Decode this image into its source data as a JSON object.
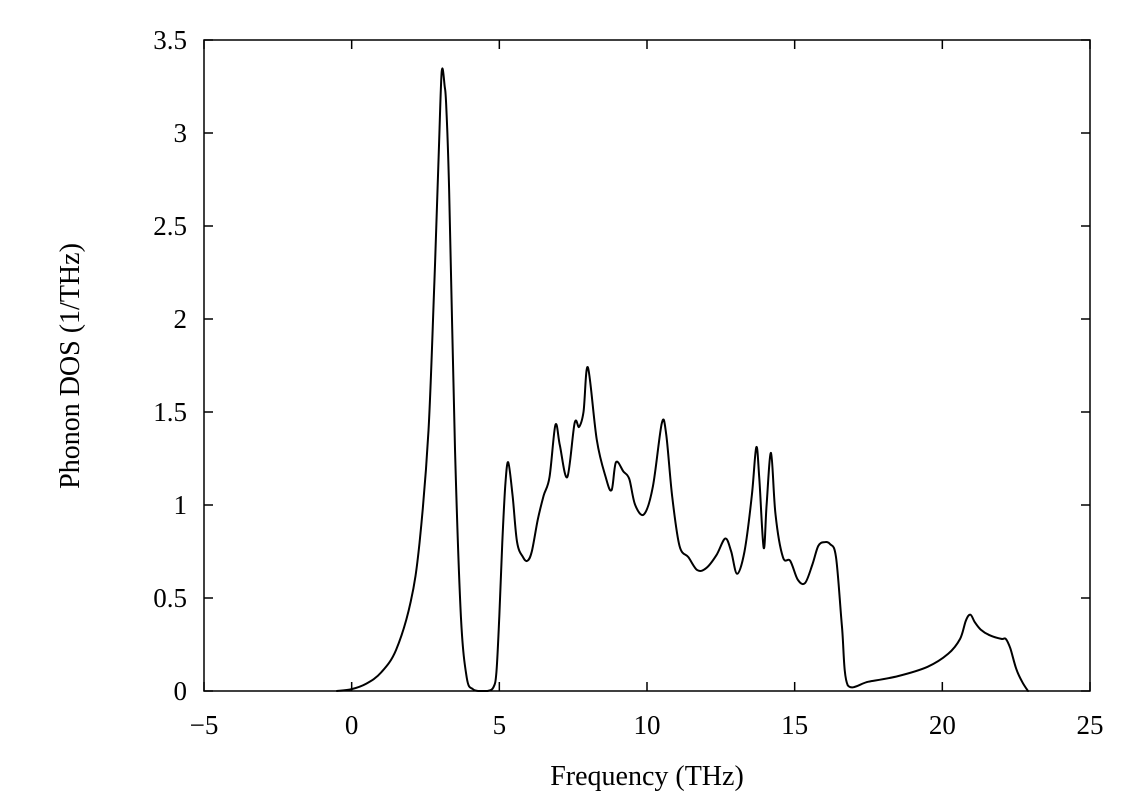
{
  "chart_data": {
    "type": "line",
    "title": "",
    "xlabel": "Frequency (THz)",
    "ylabel": "Phonon DOS (1/THz)",
    "xlim": [
      -5,
      25
    ],
    "ylim": [
      0,
      3.5
    ],
    "xticks": [
      -5,
      0,
      5,
      10,
      15,
      20,
      25
    ],
    "xtick_labels": [
      "−5",
      "0",
      "5",
      "10",
      "15",
      "20",
      "25"
    ],
    "yticks": [
      0,
      0.5,
      1,
      1.5,
      2,
      2.5,
      3,
      3.5
    ],
    "ytick_labels": [
      "0",
      "0.5",
      "1",
      "1.5",
      "2",
      "2.5",
      "3",
      "3.5"
    ],
    "grid": false,
    "legend": "none",
    "line_color": "#000000",
    "series": [
      {
        "x": [
          -0.5,
          0,
          0.5,
          1.0,
          1.5,
          2.0,
          2.3,
          2.6,
          2.8,
          2.95,
          3.05,
          3.15,
          3.2,
          3.3,
          3.5,
          3.7,
          3.9,
          4.1,
          4.3,
          4.6,
          4.8,
          4.9,
          5.0,
          5.1,
          5.2,
          5.3,
          5.45,
          5.6,
          5.8,
          5.95,
          6.1,
          6.3,
          6.5,
          6.7,
          6.9,
          7.05,
          7.3,
          7.55,
          7.7,
          7.85,
          8.0,
          8.3,
          8.6,
          8.8,
          8.95,
          9.2,
          9.4,
          9.6,
          9.9,
          10.2,
          10.5,
          10.65,
          10.85,
          11.1,
          11.4,
          11.7,
          12.0,
          12.35,
          12.65,
          12.85,
          13.05,
          13.3,
          13.55,
          13.7,
          13.8,
          13.95,
          14.05,
          14.2,
          14.35,
          14.6,
          14.85,
          15.1,
          15.35,
          15.6,
          15.8,
          16.0,
          16.2,
          16.4,
          16.6,
          16.8,
          17.5,
          18.5,
          19.5,
          20.2,
          20.6,
          20.8,
          20.95,
          21.1,
          21.3,
          21.6,
          22.0,
          22.15,
          22.3,
          22.5,
          22.7,
          22.9
        ],
        "y": [
          0.0,
          0.01,
          0.04,
          0.1,
          0.22,
          0.48,
          0.8,
          1.4,
          2.2,
          2.9,
          3.33,
          3.25,
          3.15,
          2.7,
          1.3,
          0.4,
          0.07,
          0.01,
          0.0,
          0.0,
          0.02,
          0.1,
          0.4,
          0.8,
          1.1,
          1.23,
          1.05,
          0.8,
          0.72,
          0.7,
          0.75,
          0.92,
          1.05,
          1.15,
          1.43,
          1.32,
          1.15,
          1.44,
          1.42,
          1.5,
          1.74,
          1.35,
          1.15,
          1.08,
          1.23,
          1.18,
          1.14,
          1.0,
          0.95,
          1.1,
          1.44,
          1.38,
          1.05,
          0.78,
          0.72,
          0.65,
          0.66,
          0.73,
          0.82,
          0.75,
          0.63,
          0.75,
          1.05,
          1.31,
          1.15,
          0.77,
          1.0,
          1.28,
          0.95,
          0.72,
          0.7,
          0.6,
          0.58,
          0.68,
          0.78,
          0.8,
          0.79,
          0.72,
          0.35,
          0.03,
          0.05,
          0.08,
          0.13,
          0.2,
          0.28,
          0.38,
          0.41,
          0.37,
          0.33,
          0.3,
          0.28,
          0.28,
          0.23,
          0.12,
          0.05,
          0.0
        ]
      }
    ]
  }
}
